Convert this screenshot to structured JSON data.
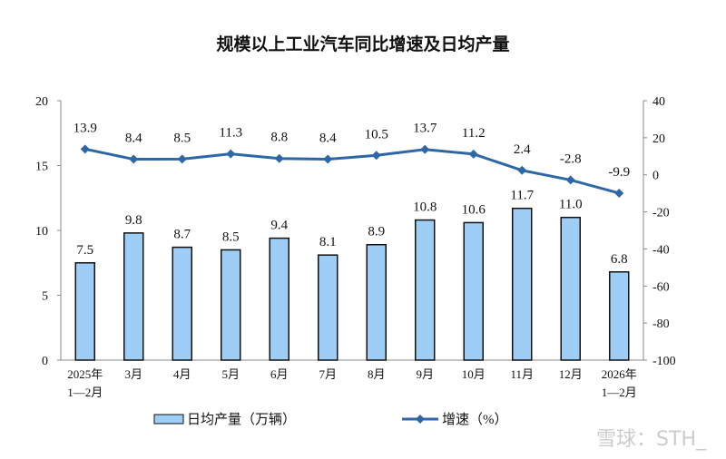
{
  "chart_data": {
    "type": "bar+line",
    "title": "规模以上工业汽车同比增速及日均产量",
    "categories": [
      [
        "2025年",
        "1—2月"
      ],
      [
        "3月"
      ],
      [
        "4月"
      ],
      [
        "5月"
      ],
      [
        "6月"
      ],
      [
        "7月"
      ],
      [
        "8月"
      ],
      [
        "9月"
      ],
      [
        "10月"
      ],
      [
        "11月"
      ],
      [
        "12月"
      ],
      [
        "2026年",
        "1—2月"
      ]
    ],
    "series": [
      {
        "name": "日均产量（万辆）",
        "type": "bar",
        "axis": "left",
        "values": [
          7.5,
          9.8,
          8.7,
          8.5,
          9.4,
          8.1,
          8.9,
          10.8,
          10.6,
          11.7,
          11.0,
          6.8
        ],
        "labels": [
          "7.5",
          "9.8",
          "8.7",
          "8.5",
          "9.4",
          "8.1",
          "8.9",
          "10.8",
          "10.6",
          "11.7",
          "11.0",
          "6.8"
        ],
        "color": "#9ecdf5"
      },
      {
        "name": "增速（%）",
        "type": "line",
        "axis": "right",
        "values": [
          13.9,
          8.4,
          8.5,
          11.3,
          8.8,
          8.4,
          10.5,
          13.7,
          11.2,
          2.4,
          -2.8,
          -9.9
        ],
        "labels": [
          "13.9",
          "8.4",
          "8.5",
          "11.3",
          "8.8",
          "8.4",
          "10.5",
          "13.7",
          "11.2",
          "2.4",
          "-2.8",
          "-9.9"
        ],
        "color": "#2d67a6"
      }
    ],
    "y_left": {
      "range": [
        0,
        20
      ],
      "ticks": [
        "0",
        "5",
        "10",
        "15",
        "20"
      ]
    },
    "y_right": {
      "range": [
        -100,
        40
      ],
      "ticks": [
        "-100",
        "-80",
        "-60",
        "-40",
        "-20",
        "0",
        "20",
        "40"
      ]
    },
    "grid": false,
    "legend": "bottom"
  },
  "watermark": "雪球：STH_"
}
